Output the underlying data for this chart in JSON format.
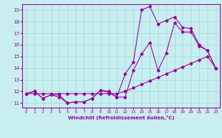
{
  "xlabel": "Windchill (Refroidissement éolien,°C)",
  "background_color": "#c8eef0",
  "grid_color": "#aadddd",
  "line_color": "#990099",
  "xlim": [
    -0.5,
    23.5
  ],
  "ylim": [
    10.6,
    19.5
  ],
  "xticks": [
    0,
    1,
    2,
    3,
    4,
    5,
    6,
    7,
    8,
    9,
    10,
    11,
    12,
    13,
    14,
    15,
    16,
    17,
    18,
    19,
    20,
    21,
    22,
    23
  ],
  "yticks": [
    11,
    12,
    13,
    14,
    15,
    16,
    17,
    18,
    19
  ],
  "line1_x": [
    0,
    1,
    2,
    3,
    4,
    5,
    6,
    7,
    8,
    9,
    10,
    11,
    12,
    13,
    14,
    15,
    16,
    17,
    18,
    19,
    20,
    21,
    22,
    23
  ],
  "line1_y": [
    11.8,
    12.0,
    11.4,
    11.7,
    11.7,
    11.0,
    11.1,
    11.1,
    11.4,
    12.1,
    12.0,
    11.5,
    11.5,
    13.8,
    15.2,
    16.2,
    13.8,
    15.3,
    17.9,
    17.1,
    17.1,
    15.9,
    15.5,
    14.0
  ],
  "line2_x": [
    0,
    1,
    2,
    3,
    4,
    5,
    6,
    7,
    8,
    9,
    10,
    11,
    12,
    13,
    14,
    15,
    16,
    17,
    18,
    19,
    20,
    21,
    22,
    23
  ],
  "line2_y": [
    11.8,
    11.8,
    11.8,
    11.8,
    11.8,
    11.8,
    11.8,
    11.8,
    11.8,
    11.8,
    11.8,
    11.8,
    12.0,
    12.3,
    12.6,
    12.9,
    13.2,
    13.5,
    13.8,
    14.1,
    14.4,
    14.7,
    15.0,
    14.0
  ],
  "line3_x": [
    0,
    1,
    2,
    3,
    4,
    5,
    6,
    7,
    8,
    9,
    10,
    11,
    12,
    13,
    14,
    15,
    16,
    17,
    18,
    19,
    20,
    21,
    22,
    23
  ],
  "line3_y": [
    11.8,
    12.0,
    11.4,
    11.7,
    11.5,
    11.0,
    11.1,
    11.1,
    11.4,
    12.1,
    11.9,
    11.5,
    13.5,
    14.5,
    19.0,
    19.3,
    17.8,
    18.1,
    18.4,
    17.5,
    17.4,
    16.0,
    15.5,
    14.0
  ]
}
